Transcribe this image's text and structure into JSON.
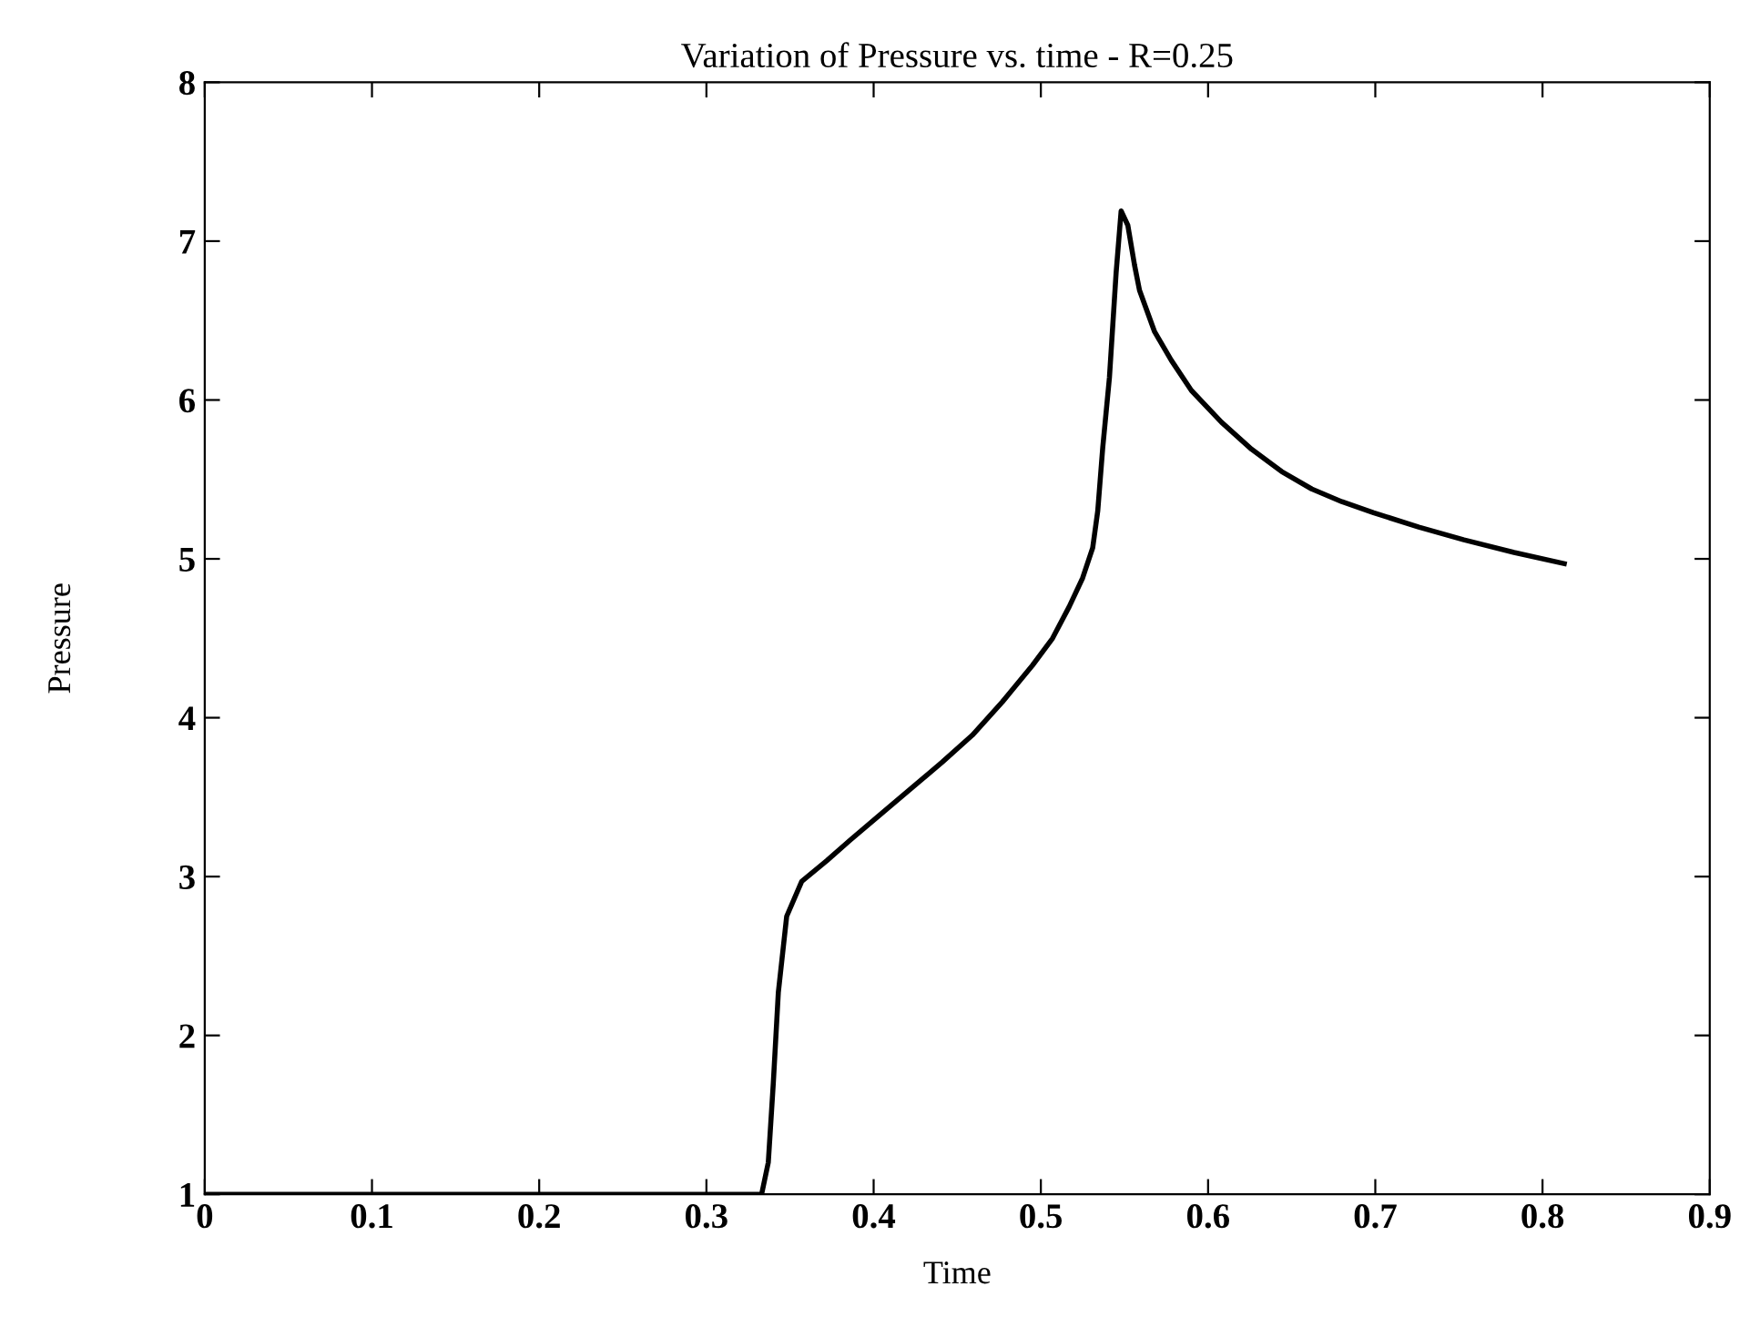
{
  "chart_data": {
    "type": "line",
    "title": "Variation of Pressure vs. time - R=0.25",
    "xlabel": "Time",
    "ylabel": "Pressure",
    "xlim": [
      0,
      0.9
    ],
    "xticks": [
      0,
      0.1,
      0.2,
      0.3,
      0.4,
      0.5,
      0.6,
      0.7,
      0.8,
      0.9
    ],
    "ylim": [
      1,
      8
    ],
    "yticks": [
      1,
      2,
      3,
      4,
      5,
      6,
      7,
      8
    ],
    "grid": false,
    "legend": false,
    "marker": "none",
    "line_style": "solid",
    "series": [
      {
        "color": "#000000",
        "x": [
          0,
          0.333,
          0.337,
          0.34,
          0.343,
          0.348,
          0.357,
          0.372,
          0.386,
          0.405,
          0.423,
          0.441,
          0.459,
          0.477,
          0.495,
          0.507,
          0.517,
          0.525,
          0.531,
          0.534,
          0.537,
          0.541,
          0.545,
          0.548,
          0.552,
          0.556,
          0.559,
          0.568,
          0.578,
          0.59,
          0.608,
          0.626,
          0.644,
          0.662,
          0.68,
          0.699,
          0.726,
          0.753,
          0.783,
          0.813
        ],
        "values": [
          1,
          1,
          1.2,
          1.7,
          2.27,
          2.75,
          2.97,
          3.1,
          3.23,
          3.4,
          3.56,
          3.72,
          3.89,
          4.1,
          4.33,
          4.5,
          4.7,
          4.88,
          5.07,
          5.3,
          5.7,
          6.14,
          6.8,
          7.19,
          7.1,
          6.85,
          6.69,
          6.43,
          6.25,
          6.06,
          5.86,
          5.69,
          5.55,
          5.44,
          5.36,
          5.29,
          5.2,
          5.12,
          5.04,
          4.97
        ]
      }
    ]
  }
}
